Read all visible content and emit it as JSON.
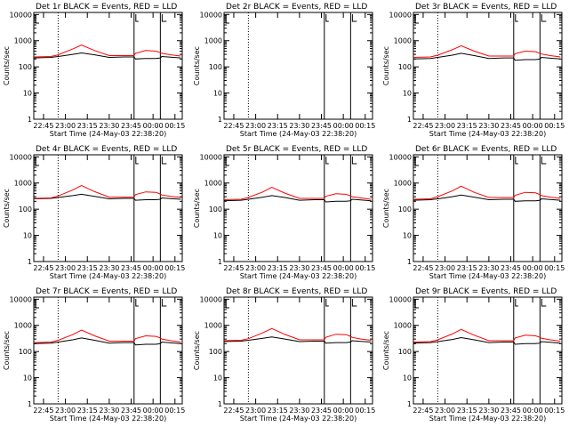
{
  "colors": {
    "events": "#000000",
    "lld": "#ff0000",
    "axes": "#000000",
    "background": "#ffffff"
  },
  "chart_data": [
    {
      "type": "line",
      "title": "Det 1r BLACK = Events, RED = LLD",
      "xlabel": "Start Time (24-May-03 22:38:20)",
      "ylabel": "Counts/sec",
      "y_scale": "log",
      "ylim": [
        1,
        12000
      ],
      "xlim": [
        "22:38:20",
        "00:20:00"
      ],
      "x_ticks": [
        "22:45",
        "23:00",
        "23:15",
        "23:30",
        "23:45",
        "00:00",
        "00:15"
      ],
      "y_ticks": [
        "1",
        "10",
        "100",
        "1000",
        "10000"
      ],
      "markers": {
        "dotted": [
          "22:55"
        ],
        "solid": [
          "23:47",
          "00:05"
        ]
      },
      "series": [
        {
          "name": "Events",
          "x": [
            "22:38",
            "22:50",
            "22:55",
            "23:05",
            "23:11",
            "23:20",
            "23:30",
            "23:40",
            "23:47",
            "23:48",
            "23:55",
            "00:02",
            "00:05",
            "00:06",
            "00:12",
            "00:19"
          ],
          "y": [
            220,
            230,
            250,
            300,
            340,
            290,
            230,
            240,
            240,
            200,
            210,
            210,
            220,
            250,
            235,
            220
          ]
        },
        {
          "name": "LLD",
          "x": [
            "22:38",
            "22:50",
            "22:55",
            "23:05",
            "23:11",
            "23:20",
            "23:30",
            "23:40",
            "23:47",
            "23:48",
            "23:55",
            "00:02",
            "00:05",
            "00:06",
            "00:12",
            "00:19"
          ],
          "y": [
            240,
            250,
            290,
            480,
            680,
            420,
            270,
            270,
            270,
            330,
            420,
            400,
            350,
            330,
            290,
            260
          ]
        }
      ]
    },
    {
      "type": "line",
      "title": "Det 2r BLACK = Events, RED = LLD",
      "xlabel": "Start Time (24-May-03 22:38:20)",
      "ylabel": "Counts/sec",
      "y_scale": "log",
      "ylim": [
        1,
        12000
      ],
      "xlim": [
        "22:38:20",
        "00:20:00"
      ],
      "x_ticks": [
        "22:45",
        "23:00",
        "23:15",
        "23:30",
        "23:45",
        "00:00",
        "00:15"
      ],
      "y_ticks": [
        "1",
        "10",
        "100",
        "1000",
        "10000"
      ],
      "markers": {
        "dotted": [
          "22:55"
        ],
        "solid": [
          "23:47",
          "00:05"
        ]
      },
      "series": []
    },
    {
      "type": "line",
      "title": "Det 3r BLACK = Events, RED = LLD",
      "xlabel": "Start Time (24-May-03 22:38:20)",
      "ylabel": "Counts/sec",
      "y_scale": "log",
      "ylim": [
        1,
        12000
      ],
      "xlim": [
        "22:38:20",
        "00:20:00"
      ],
      "x_ticks": [
        "22:45",
        "23:00",
        "23:15",
        "23:30",
        "23:45",
        "00:00",
        "00:15"
      ],
      "y_ticks": [
        "1",
        "10",
        "100",
        "1000",
        "10000"
      ],
      "markers": {
        "dotted": [
          "22:55"
        ],
        "solid": [
          "23:47",
          "00:05"
        ]
      },
      "series": [
        {
          "name": "Events",
          "x": [
            "22:38",
            "22:50",
            "22:55",
            "23:05",
            "23:11",
            "23:20",
            "23:30",
            "23:40",
            "23:47",
            "23:48",
            "23:55",
            "00:02",
            "00:05",
            "00:06",
            "00:12",
            "00:19"
          ],
          "y": [
            200,
            210,
            230,
            280,
            330,
            270,
            210,
            220,
            220,
            180,
            190,
            190,
            200,
            230,
            215,
            200
          ]
        },
        {
          "name": "LLD",
          "x": [
            "22:38",
            "22:50",
            "22:55",
            "23:05",
            "23:11",
            "23:20",
            "23:30",
            "23:40",
            "23:47",
            "23:48",
            "23:55",
            "00:02",
            "00:05",
            "00:06",
            "00:12",
            "00:19"
          ],
          "y": [
            230,
            240,
            280,
            450,
            640,
            400,
            260,
            260,
            260,
            320,
            400,
            380,
            330,
            310,
            270,
            240
          ]
        }
      ]
    },
    {
      "type": "line",
      "title": "Det 4r BLACK = Events, RED = LLD",
      "xlabel": "Start Time (24-May-03 22:38:20)",
      "ylabel": "Counts/sec",
      "y_scale": "log",
      "ylim": [
        1,
        12000
      ],
      "xlim": [
        "22:38:20",
        "00:20:00"
      ],
      "x_ticks": [
        "22:45",
        "23:00",
        "23:15",
        "23:30",
        "23:45",
        "00:00",
        "00:15"
      ],
      "y_ticks": [
        "1",
        "10",
        "100",
        "1000",
        "10000"
      ],
      "markers": {
        "dotted": [
          "22:55"
        ],
        "solid": [
          "23:47",
          "00:05"
        ]
      },
      "series": [
        {
          "name": "Events",
          "x": [
            "22:38",
            "22:50",
            "22:55",
            "23:05",
            "23:11",
            "23:20",
            "23:30",
            "23:40",
            "23:47",
            "23:48",
            "23:55",
            "00:02",
            "00:05",
            "00:06",
            "00:12",
            "00:19"
          ],
          "y": [
            250,
            260,
            280,
            330,
            370,
            310,
            250,
            260,
            260,
            220,
            230,
            230,
            240,
            270,
            255,
            240
          ]
        },
        {
          "name": "LLD",
          "x": [
            "22:38",
            "22:50",
            "22:55",
            "23:05",
            "23:11",
            "23:20",
            "23:30",
            "23:40",
            "23:47",
            "23:48",
            "23:55",
            "00:02",
            "00:05",
            "00:06",
            "00:12",
            "00:19"
          ],
          "y": [
            260,
            270,
            320,
            540,
            800,
            470,
            290,
            290,
            290,
            360,
            460,
            440,
            380,
            350,
            310,
            280
          ]
        }
      ]
    },
    {
      "type": "line",
      "title": "Det 5r BLACK = Events, RED = LLD",
      "xlabel": "Start Time (24-May-03 22:38:20)",
      "ylabel": "Counts/sec",
      "y_scale": "log",
      "ylim": [
        1,
        12000
      ],
      "xlim": [
        "22:38:20",
        "00:20:00"
      ],
      "x_ticks": [
        "22:45",
        "23:00",
        "23:15",
        "23:30",
        "23:45",
        "00:00",
        "00:15"
      ],
      "y_ticks": [
        "1",
        "10",
        "100",
        "1000",
        "10000"
      ],
      "markers": {
        "dotted": [
          "22:55"
        ],
        "solid": [
          "23:47",
          "00:05"
        ]
      },
      "series": [
        {
          "name": "Events",
          "x": [
            "22:38",
            "22:50",
            "22:55",
            "23:05",
            "23:11",
            "23:20",
            "23:30",
            "23:40",
            "23:47",
            "23:48",
            "23:55",
            "00:02",
            "00:05",
            "00:06",
            "00:12",
            "00:19"
          ],
          "y": [
            210,
            220,
            240,
            290,
            330,
            280,
            220,
            230,
            230,
            190,
            200,
            200,
            210,
            240,
            225,
            210
          ]
        },
        {
          "name": "LLD",
          "x": [
            "22:38",
            "22:50",
            "22:55",
            "23:05",
            "23:11",
            "23:20",
            "23:30",
            "23:40",
            "23:47",
            "23:48",
            "23:55",
            "00:02",
            "00:05",
            "00:06",
            "00:12",
            "00:19"
          ],
          "y": [
            230,
            240,
            280,
            460,
            690,
            410,
            260,
            260,
            260,
            310,
            390,
            370,
            320,
            300,
            270,
            240
          ]
        }
      ]
    },
    {
      "type": "line",
      "title": "Det 6r BLACK = Events, RED = LLD",
      "xlabel": "Start Time (24-May-03 22:38:20)",
      "ylabel": "Counts/sec",
      "y_scale": "log",
      "ylim": [
        1,
        12000
      ],
      "xlim": [
        "22:38:20",
        "00:20:00"
      ],
      "x_ticks": [
        "22:45",
        "23:00",
        "23:15",
        "23:30",
        "23:45",
        "00:00",
        "00:15"
      ],
      "y_ticks": [
        "1",
        "10",
        "100",
        "1000",
        "10000"
      ],
      "markers": {
        "dotted": [
          "22:55"
        ],
        "solid": [
          "23:47",
          "00:05"
        ]
      },
      "series": [
        {
          "name": "Events",
          "x": [
            "22:38",
            "22:50",
            "22:55",
            "23:05",
            "23:11",
            "23:20",
            "23:30",
            "23:40",
            "23:47",
            "23:48",
            "23:55",
            "00:02",
            "00:05",
            "00:06",
            "00:12",
            "00:19"
          ],
          "y": [
            220,
            230,
            250,
            300,
            350,
            290,
            230,
            240,
            240,
            200,
            210,
            210,
            220,
            250,
            235,
            220
          ]
        },
        {
          "name": "LLD",
          "x": [
            "22:38",
            "22:50",
            "22:55",
            "23:05",
            "23:11",
            "23:20",
            "23:30",
            "23:40",
            "23:47",
            "23:48",
            "23:55",
            "00:02",
            "00:05",
            "00:06",
            "00:12",
            "00:19"
          ],
          "y": [
            240,
            250,
            300,
            500,
            760,
            440,
            280,
            280,
            280,
            340,
            440,
            420,
            360,
            330,
            290,
            260
          ]
        }
      ]
    },
    {
      "type": "line",
      "title": "Det 7r BLACK = Events, RED = LLD",
      "xlabel": "Start Time (24-May-03 22:38:20)",
      "ylabel": "Counts/sec",
      "y_scale": "log",
      "ylim": [
        1,
        12000
      ],
      "xlim": [
        "22:38:20",
        "00:20:00"
      ],
      "x_ticks": [
        "22:45",
        "23:00",
        "23:15",
        "23:30",
        "23:45",
        "00:00",
        "00:15"
      ],
      "y_ticks": [
        "1",
        "10",
        "100",
        "1000",
        "10000"
      ],
      "markers": {
        "dotted": [
          "22:55"
        ],
        "solid": [
          "23:47",
          "00:05"
        ]
      },
      "series": [
        {
          "name": "Events",
          "x": [
            "22:38",
            "22:50",
            "22:55",
            "23:05",
            "23:11",
            "23:20",
            "23:30",
            "23:40",
            "23:47",
            "23:48",
            "23:55",
            "00:02",
            "00:05",
            "00:06",
            "00:12",
            "00:19"
          ],
          "y": [
            200,
            210,
            230,
            280,
            330,
            270,
            210,
            220,
            220,
            180,
            190,
            190,
            200,
            230,
            215,
            200
          ]
        },
        {
          "name": "LLD",
          "x": [
            "22:38",
            "22:50",
            "22:55",
            "23:05",
            "23:11",
            "23:20",
            "23:30",
            "23:40",
            "23:47",
            "23:48",
            "23:55",
            "00:02",
            "00:05",
            "00:06",
            "00:12",
            "00:19"
          ],
          "y": [
            220,
            230,
            270,
            440,
            660,
            400,
            250,
            250,
            250,
            310,
            400,
            380,
            330,
            300,
            260,
            230
          ]
        }
      ]
    },
    {
      "type": "line",
      "title": "Det 8r BLACK = Events, RED = LLD",
      "xlabel": "Start Time (24-May-03 22:38:20)",
      "ylabel": "Counts/sec",
      "y_scale": "log",
      "ylim": [
        1,
        12000
      ],
      "xlim": [
        "22:38:20",
        "00:20:00"
      ],
      "x_ticks": [
        "22:45",
        "23:00",
        "23:15",
        "23:30",
        "23:45",
        "00:00",
        "00:15"
      ],
      "y_ticks": [
        "1",
        "10",
        "100",
        "1000",
        "10000"
      ],
      "markers": {
        "dotted": [
          "22:55"
        ],
        "solid": [
          "23:47",
          "00:05"
        ]
      },
      "series": [
        {
          "name": "Events",
          "x": [
            "22:38",
            "22:50",
            "22:55",
            "23:05",
            "23:11",
            "23:20",
            "23:30",
            "23:40",
            "23:47",
            "23:48",
            "23:55",
            "00:02",
            "00:05",
            "00:06",
            "00:12",
            "00:19"
          ],
          "y": [
            240,
            250,
            270,
            320,
            360,
            300,
            240,
            250,
            250,
            210,
            220,
            220,
            230,
            260,
            245,
            230
          ]
        },
        {
          "name": "LLD",
          "x": [
            "22:38",
            "22:50",
            "22:55",
            "23:05",
            "23:11",
            "23:20",
            "23:30",
            "23:40",
            "23:47",
            "23:48",
            "23:55",
            "00:02",
            "00:05",
            "00:06",
            "00:12",
            "00:19"
          ],
          "y": [
            260,
            270,
            310,
            520,
            760,
            450,
            280,
            280,
            280,
            350,
            460,
            440,
            380,
            350,
            300,
            270
          ]
        }
      ]
    },
    {
      "type": "line",
      "title": "Det 9r BLACK = Events, RED = LLD",
      "xlabel": "Start Time (24-May-03 22:38:20)",
      "ylabel": "Counts/sec",
      "y_scale": "log",
      "ylim": [
        1,
        12000
      ],
      "xlim": [
        "22:38:20",
        "00:20:00"
      ],
      "x_ticks": [
        "22:45",
        "23:00",
        "23:15",
        "23:30",
        "23:45",
        "00:00",
        "00:15"
      ],
      "y_ticks": [
        "1",
        "10",
        "100",
        "1000",
        "10000"
      ],
      "markers": {
        "dotted": [
          "22:55"
        ],
        "solid": [
          "23:47",
          "00:05"
        ]
      },
      "series": [
        {
          "name": "Events",
          "x": [
            "22:38",
            "22:50",
            "22:55",
            "23:05",
            "23:11",
            "23:20",
            "23:30",
            "23:40",
            "23:47",
            "23:48",
            "23:55",
            "00:02",
            "00:05",
            "00:06",
            "00:12",
            "00:19"
          ],
          "y": [
            210,
            220,
            240,
            290,
            340,
            280,
            220,
            230,
            230,
            190,
            200,
            200,
            210,
            240,
            225,
            210
          ]
        },
        {
          "name": "LLD",
          "x": [
            "22:38",
            "22:50",
            "22:55",
            "23:05",
            "23:11",
            "23:20",
            "23:30",
            "23:40",
            "23:47",
            "23:48",
            "23:55",
            "00:02",
            "00:05",
            "00:06",
            "00:12",
            "00:19"
          ],
          "y": [
            230,
            240,
            280,
            470,
            700,
            420,
            260,
            260,
            260,
            330,
            420,
            400,
            350,
            320,
            280,
            250
          ]
        }
      ]
    }
  ]
}
